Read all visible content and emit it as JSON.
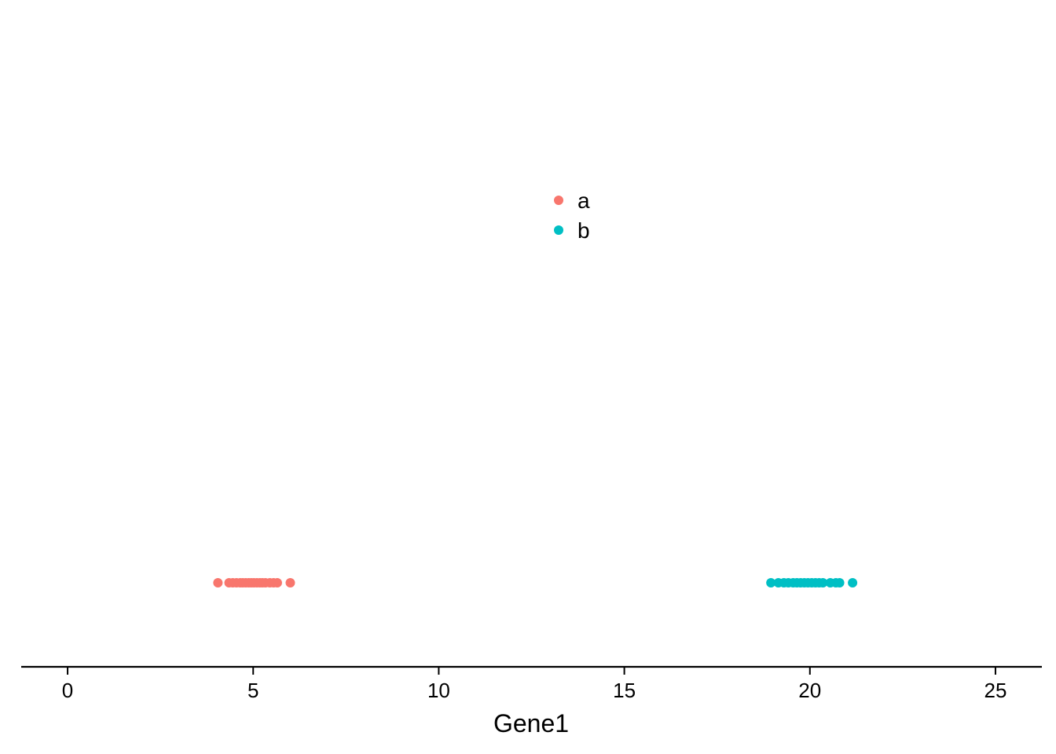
{
  "chart_data": {
    "type": "scatter",
    "title": "",
    "xlabel": "Gene1",
    "ylabel": "",
    "xlim": [
      -1.25,
      26.25
    ],
    "x_ticks": [
      0,
      5,
      10,
      15,
      20,
      25
    ],
    "tick_labels": [
      "0",
      "5",
      "10",
      "15",
      "20",
      "25"
    ],
    "grid": false,
    "legend_position": "top-center",
    "series": [
      {
        "name": "a",
        "color": "#F8766D",
        "x": [
          4.05,
          4.35,
          4.45,
          4.55,
          4.65,
          4.72,
          4.8,
          4.88,
          4.95,
          5.02,
          5.1,
          5.18,
          5.25,
          5.33,
          5.45,
          5.55,
          5.65,
          6.0
        ],
        "y": [
          0,
          0,
          0,
          0,
          0,
          0,
          0,
          0,
          0,
          0,
          0,
          0,
          0,
          0,
          0,
          0,
          0,
          0
        ]
      },
      {
        "name": "b",
        "color": "#00BFC4",
        "x": [
          18.95,
          19.15,
          19.3,
          19.42,
          19.55,
          19.65,
          19.75,
          19.85,
          19.95,
          20.05,
          20.15,
          20.25,
          20.35,
          20.55,
          20.7,
          20.8,
          21.15
        ],
        "y": [
          0,
          0,
          0,
          0,
          0,
          0,
          0,
          0,
          0,
          0,
          0,
          0,
          0,
          0,
          0,
          0,
          0
        ]
      }
    ]
  }
}
